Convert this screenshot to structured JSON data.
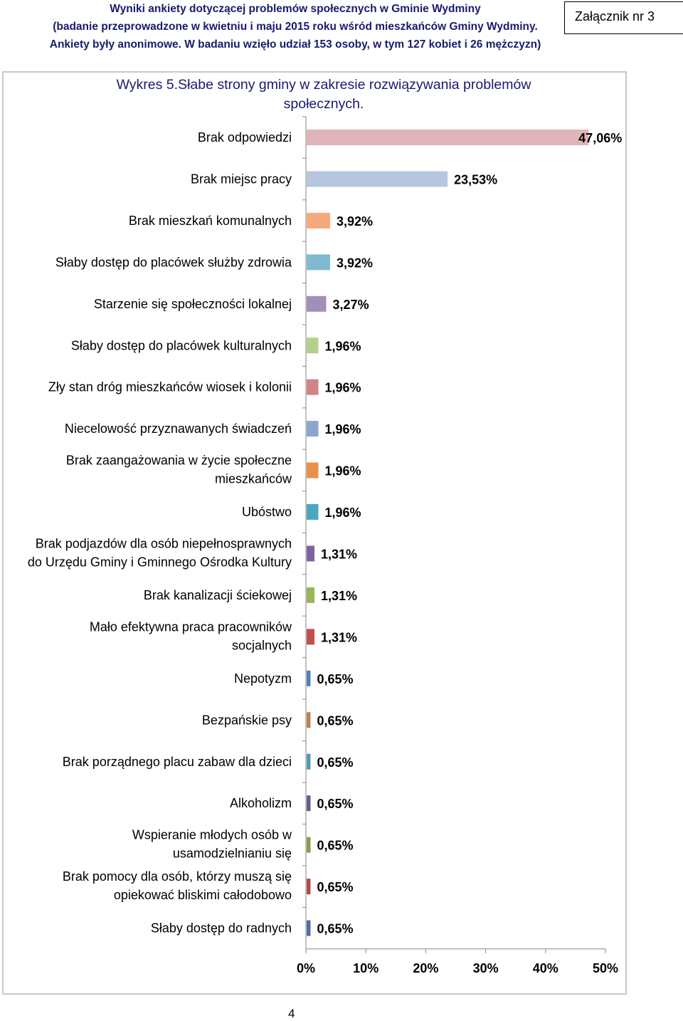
{
  "header": {
    "line1": "Wyniki ankiety dotyczącej problemów społecznych w Gminie Wydminy",
    "line2": "(badanie przeprowadzone w kwietniu i maju 2015 roku wśród mieszkańców Gminy Wydminy.",
    "line3": "Ankiety były anonimowe. W badaniu wzięło udział 153 osoby, w tym 127 kobiet i 26 mężczyzn)",
    "annex": "Załącznik nr 3"
  },
  "page_number": "4",
  "chart_data": {
    "type": "bar",
    "orientation": "horizontal",
    "title": "Wykres 5.Słabe strony gminy w zakresie rozwiązywania problemów społecznych.",
    "title_lines": [
      "Wykres 5.Słabe strony gminy w zakresie rozwiązywania problemów",
      "społecznych."
    ],
    "xlim": [
      0,
      50
    ],
    "x_ticks": [
      "0%",
      "10%",
      "20%",
      "30%",
      "40%",
      "50%"
    ],
    "grid": false,
    "categories": [
      [
        "Brak odpowiedzi"
      ],
      [
        "Brak miejsc pracy"
      ],
      [
        "Brak mieszkań komunalnych"
      ],
      [
        "Słaby dostęp do placówek służby zdrowia"
      ],
      [
        "Starzenie się społeczności lokalnej"
      ],
      [
        "Słaby dostęp do placówek kulturalnych"
      ],
      [
        "Zły stan dróg mieszkańców wiosek i kolonii"
      ],
      [
        "Niecelowość przyznawanych świadczeń"
      ],
      [
        "Brak zaangażowania w życie społeczne",
        "mieszkańców"
      ],
      [
        "Ubóstwo"
      ],
      [
        "Brak podjazdów dla osób niepełnosprawnych",
        "do Urzędu Gminy i Gminnego Ośrodka Kultury"
      ],
      [
        "Brak kanalizacji ściekowej"
      ],
      [
        "Mało efektywna praca pracowników",
        "socjalnych"
      ],
      [
        "Nepotyzm"
      ],
      [
        "Bezpańskie psy"
      ],
      [
        "Brak porządnego placu zabaw dla dzieci"
      ],
      [
        "Alkoholizm"
      ],
      [
        "Wspieranie młodych osób w",
        "usamodzielnianiu się"
      ],
      [
        "Brak pomocy dla osób, którzy muszą się",
        "opiekować bliskimi całodobowo"
      ],
      [
        "Słaby dostęp do radnych"
      ]
    ],
    "values": [
      47.06,
      23.53,
      3.92,
      3.92,
      3.27,
      1.96,
      1.96,
      1.96,
      1.96,
      1.96,
      1.31,
      1.31,
      1.31,
      0.65,
      0.65,
      0.65,
      0.65,
      0.65,
      0.65,
      0.65
    ],
    "value_labels": [
      "47,06%",
      "23,53%",
      "3,92%",
      "3,92%",
      "3,27%",
      "1,96%",
      "1,96%",
      "1,96%",
      "1,96%",
      "1,96%",
      "1,31%",
      "1,31%",
      "1,31%",
      "0,65%",
      "0,65%",
      "0,65%",
      "0,65%",
      "0,65%",
      "0,65%",
      "0,65%"
    ],
    "colors": [
      "#e0b4b8",
      "#b6c6e0",
      "#f6a97e",
      "#80bad0",
      "#a28fb9",
      "#b5cf8d",
      "#d08485",
      "#8ea4cf",
      "#e8914e",
      "#4ba7bf",
      "#7e63a3",
      "#98b75a",
      "#c0504d",
      "#4f81bd",
      "#c0804d",
      "#4f9bb0",
      "#6a5a8a",
      "#8a9d4a",
      "#b04a4a",
      "#4a6ea8"
    ]
  }
}
